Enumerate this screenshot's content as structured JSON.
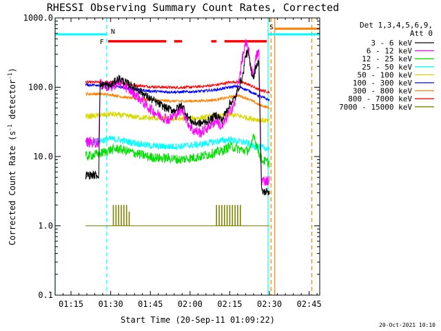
{
  "chart_data": {
    "type": "line",
    "title": "RHESSI Observing Summary Count Rates, Corrected",
    "xlabel": "Start Time (20-Sep-11 01:09:22)",
    "ylabel_main": "Corrected Count Rate (s",
    "ylabel_sup": "-1",
    "ylabel_mid": " detector",
    "ylabel_end": ")",
    "yscale": "log",
    "ylim": [
      0.1,
      1000
    ],
    "xlim_minutes": [
      69,
      169
    ],
    "x_ticks": [
      {
        "label": "01:15",
        "minute": 75
      },
      {
        "label": "01:30",
        "minute": 90
      },
      {
        "label": "01:45",
        "minute": 105
      },
      {
        "label": "02:00",
        "minute": 120
      },
      {
        "label": "02:15",
        "minute": 135
      },
      {
        "label": "02:30",
        "minute": 150
      },
      {
        "label": "02:45",
        "minute": 165
      }
    ],
    "y_ticks": [
      {
        "label": "0.1",
        "value": 0.1
      },
      {
        "label": "1.0",
        "value": 1
      },
      {
        "label": "10.0",
        "value": 10
      },
      {
        "label": "100.0",
        "value": 100
      },
      {
        "label": "1000.0",
        "value": 1000
      }
    ],
    "legend_header": [
      "Det 1,3,4,5,6,9,",
      "Att 0"
    ],
    "legend_position": "top-right",
    "grid": false,
    "series": [
      {
        "name": "3 - 6 keV",
        "color": "#000000",
        "points": [
          [
            80.5,
            5.4
          ],
          [
            85.5,
            5.4
          ],
          [
            86.0,
            110
          ],
          [
            90,
            105
          ],
          [
            93,
            135
          ],
          [
            96,
            115
          ],
          [
            100,
            95
          ],
          [
            104,
            72
          ],
          [
            108,
            58
          ],
          [
            111,
            50
          ],
          [
            114,
            46
          ],
          [
            117,
            56
          ],
          [
            119,
            38
          ],
          [
            121,
            31
          ],
          [
            124,
            30
          ],
          [
            127,
            33
          ],
          [
            130,
            40
          ],
          [
            132,
            33
          ],
          [
            135,
            58
          ],
          [
            137,
            70
          ],
          [
            140,
            150
          ],
          [
            141,
            300
          ],
          [
            142,
            310
          ],
          [
            143,
            175
          ],
          [
            144,
            140
          ],
          [
            145,
            210
          ],
          [
            146,
            230
          ],
          [
            147,
            3.1
          ],
          [
            150,
            3.1
          ]
        ]
      },
      {
        "name": "6 - 12 keV",
        "color": "#ff00ff",
        "points": [
          [
            80.5,
            16
          ],
          [
            85.5,
            16
          ],
          [
            86.0,
            110
          ],
          [
            90,
            100
          ],
          [
            93,
            120
          ],
          [
            96,
            100
          ],
          [
            100,
            75
          ],
          [
            104,
            52
          ],
          [
            108,
            40
          ],
          [
            112,
            34
          ],
          [
            115,
            42
          ],
          [
            117,
            48
          ],
          [
            119,
            32
          ],
          [
            121,
            24
          ],
          [
            124,
            22
          ],
          [
            127,
            27
          ],
          [
            130,
            34
          ],
          [
            132,
            26
          ],
          [
            135,
            45
          ],
          [
            137,
            60
          ],
          [
            139,
            170
          ],
          [
            140,
            290
          ],
          [
            141,
            420
          ],
          [
            142,
            360
          ],
          [
            143,
            200
          ],
          [
            144,
            150
          ],
          [
            145,
            280
          ],
          [
            146,
            330
          ],
          [
            147,
            4.5
          ],
          [
            150,
            4.5
          ]
        ]
      },
      {
        "name": "12 - 25 keV",
        "color": "#00e000",
        "points": [
          [
            80.5,
            10
          ],
          [
            86,
            11
          ],
          [
            90,
            12.5
          ],
          [
            93,
            13
          ],
          [
            96,
            12
          ],
          [
            100,
            11
          ],
          [
            104,
            10
          ],
          [
            108,
            9.5
          ],
          [
            112,
            9.5
          ],
          [
            116,
            9
          ],
          [
            120,
            9.5
          ],
          [
            124,
            10
          ],
          [
            128,
            11
          ],
          [
            132,
            12
          ],
          [
            135,
            14
          ],
          [
            138,
            13
          ],
          [
            141,
            12
          ],
          [
            143,
            13
          ],
          [
            144,
            22
          ],
          [
            145,
            15
          ],
          [
            147,
            9
          ],
          [
            150,
            8
          ]
        ]
      },
      {
        "name": "25 - 50 keV",
        "color": "#00ffff",
        "points": [
          [
            80.5,
            16
          ],
          [
            86,
            17
          ],
          [
            90,
            18
          ],
          [
            93,
            17.5
          ],
          [
            96,
            16.5
          ],
          [
            100,
            15.5
          ],
          [
            104,
            14.5
          ],
          [
            108,
            14
          ],
          [
            112,
            14
          ],
          [
            116,
            14
          ],
          [
            120,
            14.5
          ],
          [
            124,
            15
          ],
          [
            128,
            16
          ],
          [
            132,
            17
          ],
          [
            135,
            17.5
          ],
          [
            138,
            16.5
          ],
          [
            141,
            16
          ],
          [
            144,
            14
          ],
          [
            147,
            13.5
          ],
          [
            150,
            13
          ]
        ]
      },
      {
        "name": "50 - 100 keV",
        "color": "#d8d800",
        "points": [
          [
            80.5,
            38
          ],
          [
            86,
            39
          ],
          [
            90,
            41
          ],
          [
            95,
            39
          ],
          [
            100,
            37
          ],
          [
            105,
            36
          ],
          [
            110,
            35.5
          ],
          [
            115,
            35
          ],
          [
            120,
            35.5
          ],
          [
            125,
            36.5
          ],
          [
            130,
            38
          ],
          [
            135,
            40
          ],
          [
            138,
            39
          ],
          [
            142,
            36
          ],
          [
            146,
            34
          ],
          [
            150,
            32
          ]
        ]
      },
      {
        "name": "100 - 300 keV",
        "color": "#0000ff",
        "points": [
          [
            80.5,
            108
          ],
          [
            86,
            108
          ],
          [
            90,
            106
          ],
          [
            95,
            98
          ],
          [
            100,
            92
          ],
          [
            105,
            88
          ],
          [
            110,
            86
          ],
          [
            115,
            85
          ],
          [
            120,
            86
          ],
          [
            125,
            88
          ],
          [
            130,
            92
          ],
          [
            135,
            100
          ],
          [
            138,
            103
          ],
          [
            142,
            90
          ],
          [
            146,
            75
          ],
          [
            150,
            65
          ]
        ]
      },
      {
        "name": "300 - 800 keV",
        "color": "#ff8000",
        "points": [
          [
            80.5,
            80
          ],
          [
            86,
            80
          ],
          [
            90,
            78
          ],
          [
            95,
            72
          ],
          [
            100,
            68
          ],
          [
            105,
            66
          ],
          [
            110,
            64
          ],
          [
            115,
            63
          ],
          [
            120,
            63
          ],
          [
            125,
            64
          ],
          [
            130,
            66
          ],
          [
            135,
            72
          ],
          [
            138,
            76
          ],
          [
            142,
            68
          ],
          [
            146,
            56
          ],
          [
            150,
            50
          ]
        ]
      },
      {
        "name": "800 - 7000 keV",
        "color": "#ff0000",
        "points": [
          [
            80.5,
            118
          ],
          [
            86,
            118
          ],
          [
            90,
            118
          ],
          [
            95,
            112
          ],
          [
            100,
            106
          ],
          [
            105,
            102
          ],
          [
            110,
            100
          ],
          [
            115,
            99
          ],
          [
            120,
            100
          ],
          [
            125,
            103
          ],
          [
            130,
            108
          ],
          [
            135,
            118
          ],
          [
            138,
            120
          ],
          [
            142,
            110
          ],
          [
            146,
            92
          ],
          [
            150,
            85
          ]
        ]
      },
      {
        "name": "7000 - 15000 keV",
        "color": "#808000",
        "points": [
          [
            80.5,
            1
          ],
          [
            150,
            1
          ]
        ]
      }
    ],
    "spikes_7000_15000": [
      {
        "minute": 91,
        "value": 2
      },
      {
        "minute": 92,
        "value": 2
      },
      {
        "minute": 93,
        "value": 2
      },
      {
        "minute": 94,
        "value": 2
      },
      {
        "minute": 95,
        "value": 2
      },
      {
        "minute": 96,
        "value": 2
      },
      {
        "minute": 97,
        "value": 1.6
      },
      {
        "minute": 130,
        "value": 2
      },
      {
        "minute": 131,
        "value": 2
      },
      {
        "minute": 132,
        "value": 2
      },
      {
        "minute": 133,
        "value": 2
      },
      {
        "minute": 134,
        "value": 2
      },
      {
        "minute": 135,
        "value": 2
      },
      {
        "minute": 136,
        "value": 2
      },
      {
        "minute": 137,
        "value": 2
      },
      {
        "minute": 138,
        "value": 2
      },
      {
        "minute": 139,
        "value": 2
      }
    ],
    "flags": {
      "night": {
        "label": "N",
        "color": "#00ffff",
        "start": 69,
        "end": 88.5,
        "level": 580
      },
      "saa": {
        "label": "S",
        "color": "#ff8000",
        "start": 150.5,
        "end": 169,
        "level": 700
      },
      "saa_cyan": {
        "color": "#00ffff",
        "start": 149.5,
        "end": 169,
        "level": 580
      },
      "flare": {
        "label": "F",
        "color": "#ff0000",
        "segments": [
          [
            89,
            111
          ],
          [
            114,
            117
          ],
          [
            128,
            130
          ],
          [
            133,
            149
          ]
        ],
        "level": 460
      },
      "vlines": [
        {
          "minute": 69.0,
          "color": "#00ffff",
          "dashed": false
        },
        {
          "minute": 88.5,
          "color": "#00ffff",
          "dashed": true
        },
        {
          "minute": 149.5,
          "color": "#00ffff",
          "dashed": false
        },
        {
          "minute": 150.6,
          "color": "#ff8000",
          "dashed": true
        },
        {
          "minute": 152,
          "color": "#ff8000",
          "dashed": false
        },
        {
          "minute": 166,
          "color": "#ff8000",
          "dashed": true
        }
      ]
    },
    "footer_date": "20-Oct-2021 10:10"
  }
}
